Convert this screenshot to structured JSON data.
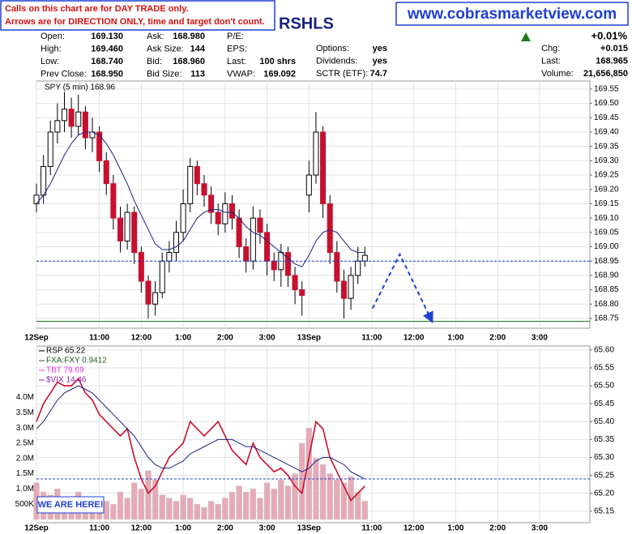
{
  "header": {
    "notice": [
      "Calls on this chart are for DAY TRADE only.",
      "Arrows are for DIRECTION ONLY, time and target don't count."
    ],
    "symbol": "RSHLS",
    "website": "www.cobrasmarketview.com"
  },
  "quote": {
    "change_pct": "+0.01%",
    "columns": [
      [
        {
          "label": "Open:",
          "value": "169.130"
        },
        {
          "label": "High:",
          "value": "169.460"
        },
        {
          "label": "Low:",
          "value": "168.740"
        },
        {
          "label": "Prev Close:",
          "value": "168.950"
        }
      ],
      [
        {
          "label": "Ask:",
          "value": "168.980"
        },
        {
          "label": "Ask Size:",
          "value": "144"
        },
        {
          "label": "Bid:",
          "value": "168.960"
        },
        {
          "label": "Bid Size:",
          "value": "113"
        }
      ],
      [
        {
          "label": "P/E:"
        },
        {
          "label": "EPS:"
        },
        {
          "label": "Last:",
          "value": "100 shrs"
        },
        {
          "label": "VWAP:",
          "value": "169.092"
        }
      ],
      [
        {
          "label": "Options:",
          "value": "yes"
        },
        {
          "label": "Dividends:",
          "value": "yes"
        },
        {
          "label": "SCTR (ETF):",
          "value": "74.7"
        }
      ],
      [
        {
          "label": "Chg:",
          "value": "+0.015"
        },
        {
          "label": "Last:",
          "value": "168.965"
        },
        {
          "label": "Volume:",
          "value": "21,656,850"
        }
      ]
    ]
  },
  "chart_data": [
    {
      "type": "candlestick",
      "legend": "SPY (5 min) 168.96",
      "x": [
        0,
        10,
        20,
        30,
        40,
        50,
        60,
        70,
        80,
        90,
        100,
        110,
        120,
        130,
        140,
        150,
        160,
        170,
        180,
        190,
        200,
        210,
        220,
        230,
        240,
        250,
        260,
        270,
        280,
        290,
        300,
        310,
        320,
        330,
        340,
        350,
        360,
        370,
        380,
        390,
        400,
        410,
        420,
        430,
        440,
        450,
        460,
        470
      ],
      "open": [
        169.15,
        169.18,
        169.28,
        169.4,
        169.44,
        169.48,
        169.42,
        169.47,
        169.38,
        169.4,
        169.3,
        169.22,
        169.1,
        169.02,
        169.12,
        168.98,
        168.88,
        168.8,
        168.84,
        168.95,
        168.98,
        169.05,
        169.15,
        169.28,
        169.22,
        169.18,
        169.12,
        169.08,
        169.15,
        169.1,
        169.0,
        168.95,
        169.1,
        169.05,
        168.95,
        168.92,
        168.98,
        168.9,
        168.85,
        169.18,
        169.25,
        169.4,
        169.15,
        168.98,
        168.88,
        168.82,
        168.9,
        168.95
      ],
      "high": [
        169.22,
        169.32,
        169.44,
        169.5,
        169.54,
        169.52,
        169.53,
        169.49,
        169.45,
        169.42,
        169.33,
        169.25,
        169.14,
        169.15,
        169.14,
        169.0,
        168.9,
        168.88,
        168.98,
        169.02,
        169.09,
        169.2,
        169.31,
        169.3,
        169.25,
        169.21,
        169.15,
        169.19,
        169.18,
        169.13,
        169.03,
        169.14,
        169.13,
        169.08,
        168.98,
        169.01,
        169.0,
        168.93,
        168.88,
        169.3,
        169.47,
        169.42,
        169.18,
        169.02,
        168.92,
        168.93,
        169.0,
        169.0
      ],
      "low": [
        169.12,
        169.15,
        169.25,
        169.36,
        169.4,
        169.38,
        169.39,
        169.34,
        169.33,
        169.26,
        169.18,
        169.06,
        168.98,
        168.99,
        168.94,
        168.84,
        168.75,
        168.76,
        168.82,
        168.91,
        168.95,
        169.02,
        169.12,
        169.18,
        169.14,
        169.08,
        169.04,
        169.05,
        169.06,
        168.96,
        168.91,
        168.92,
        169.01,
        168.9,
        168.88,
        168.86,
        168.86,
        168.8,
        168.76,
        169.12,
        169.22,
        169.1,
        168.94,
        168.84,
        168.75,
        168.78,
        168.87,
        168.93
      ],
      "close": [
        169.18,
        169.28,
        169.4,
        169.44,
        169.48,
        169.42,
        169.47,
        169.38,
        169.4,
        169.3,
        169.22,
        169.1,
        169.02,
        169.12,
        168.98,
        168.88,
        168.8,
        168.84,
        168.95,
        168.98,
        169.05,
        169.15,
        169.28,
        169.22,
        169.18,
        169.12,
        169.08,
        169.15,
        169.1,
        169.0,
        168.95,
        169.1,
        169.05,
        168.95,
        168.92,
        168.98,
        168.9,
        168.85,
        168.83,
        169.25,
        169.4,
        169.15,
        168.98,
        168.88,
        168.82,
        168.9,
        168.95,
        168.97
      ],
      "ma": [
        169.15,
        169.18,
        169.22,
        169.27,
        169.32,
        169.36,
        169.39,
        169.4,
        169.4,
        169.39,
        169.36,
        169.32,
        169.27,
        169.22,
        169.16,
        169.11,
        169.06,
        169.01,
        168.99,
        168.99,
        169.0,
        169.02,
        169.06,
        169.1,
        169.12,
        169.13,
        169.13,
        169.12,
        169.12,
        169.1,
        169.07,
        169.05,
        169.04,
        169.02,
        169.0,
        168.98,
        168.96,
        168.94,
        168.93,
        168.97,
        169.02,
        169.05,
        169.06,
        169.05,
        169.02,
        168.99,
        168.98,
        168.98
      ],
      "up_color": "#ffffff",
      "down_color": "#c8102e",
      "ma_color": "#1a237e",
      "price_line": {
        "value": 168.95,
        "color": "#1f3fd0"
      },
      "support_line": {
        "value": 168.74,
        "color": "#1e7a1e"
      },
      "arrow": {
        "x": [
          481,
          520,
          566
        ],
        "y": [
          168.785,
          168.974,
          168.74
        ],
        "color": "#1f3fd0"
      },
      "xlim": [
        0,
        792
      ],
      "xticks": [
        {
          "value": 0,
          "label": "12Sep"
        },
        {
          "value": 90,
          "label": "11:00"
        },
        {
          "value": 150,
          "label": "12:00"
        },
        {
          "value": 210,
          "label": "1:00"
        },
        {
          "value": 270,
          "label": "2:00"
        },
        {
          "value": 330,
          "label": "3:00"
        },
        {
          "value": 390,
          "label": "13Sep"
        },
        {
          "value": 480,
          "label": "11:00"
        },
        {
          "value": 540,
          "label": "12:00"
        },
        {
          "value": 600,
          "label": "1:00"
        },
        {
          "value": 660,
          "label": "2:00"
        },
        {
          "value": 720,
          "label": "3:00"
        }
      ],
      "ylim": [
        168.716,
        169.578
      ],
      "yticks": [
        169.55,
        {
          "value": 169.5,
          "label": "169.50"
        },
        169.45,
        {
          "value": 169.4,
          "label": "169.40"
        },
        169.35,
        {
          "value": 169.3,
          "label": "169.30"
        },
        169.25,
        {
          "value": 169.2,
          "label": "169.20"
        },
        169.15,
        {
          "value": 169.1,
          "label": "169.10"
        },
        169.05,
        {
          "value": 169,
          "label": "169.00"
        },
        168.95,
        {
          "value": 168.9,
          "label": "168.90"
        },
        168.85,
        {
          "value": 168.8,
          "label": "168.80"
        },
        168.75
      ],
      "grid": true
    },
    {
      "type": "line",
      "legend_texts": [
        {
          "text": "RSP  65.22",
          "color": "#000000"
        },
        {
          "text": "FXA:FXY  0.9412",
          "color": "#1b5e20"
        },
        {
          "text": "TBT  79.69",
          "color": "#e040e0"
        },
        {
          "text": "$VIX  14.46",
          "color": "#8e24aa"
        }
      ],
      "annotation": "WE ARE HERE!",
      "x": [
        0,
        10,
        20,
        30,
        40,
        50,
        60,
        70,
        80,
        90,
        100,
        110,
        120,
        130,
        140,
        150,
        160,
        170,
        180,
        190,
        200,
        210,
        220,
        230,
        240,
        250,
        260,
        270,
        280,
        290,
        300,
        310,
        320,
        330,
        340,
        350,
        360,
        370,
        380,
        390,
        400,
        410,
        420,
        430,
        440,
        450,
        460,
        470
      ],
      "series": [
        {
          "name": "RSP",
          "color": "#c8102e",
          "values": [
            65.4,
            65.45,
            65.48,
            65.51,
            65.5,
            65.5,
            65.52,
            65.48,
            65.46,
            65.42,
            65.4,
            65.38,
            65.36,
            65.38,
            65.3,
            65.24,
            65.2,
            65.22,
            65.26,
            65.3,
            65.32,
            65.34,
            65.4,
            65.38,
            65.36,
            65.38,
            65.4,
            65.36,
            65.32,
            65.3,
            65.28,
            65.34,
            65.3,
            65.28,
            65.26,
            65.27,
            65.25,
            65.22,
            65.2,
            65.3,
            65.4,
            65.38,
            65.3,
            65.26,
            65.22,
            65.18,
            65.2,
            65.22
          ]
        },
        {
          "color": "#1a237e",
          "values": [
            65.38,
            65.4,
            65.43,
            65.46,
            65.48,
            65.49,
            65.5,
            65.49,
            65.48,
            65.46,
            65.44,
            65.42,
            65.4,
            65.38,
            65.36,
            65.33,
            65.3,
            65.28,
            65.27,
            65.27,
            65.28,
            65.29,
            65.31,
            65.32,
            65.33,
            65.34,
            65.35,
            65.35,
            65.35,
            65.34,
            65.33,
            65.33,
            65.32,
            65.31,
            65.3,
            65.29,
            65.28,
            65.27,
            65.26,
            65.27,
            65.29,
            65.3,
            65.3,
            65.29,
            65.28,
            65.26,
            65.25,
            65.24
          ]
        },
        {
          "axis": "y2",
          "color": "#e6aab6",
          "values": [
            1200000,
            900000,
            800000,
            1000000,
            700000,
            600000,
            900000,
            700000,
            600000,
            700000,
            600000,
            500000,
            900000,
            700000,
            1200000,
            1000000,
            1600000,
            1300000,
            800000,
            700000,
            600000,
            800000,
            700000,
            500000,
            400000,
            600000,
            500000,
            700000,
            900000,
            1100000,
            900000,
            1000000,
            700000,
            1200000,
            1000000,
            1300000,
            1100000,
            1500000,
            2500000,
            3000000,
            2000000,
            1800000,
            1500000,
            1300000,
            1200000,
            1400000,
            900000,
            600000
          ]
        }
      ],
      "price_line": {
        "value": 65.24,
        "color": "#1f3fd0"
      },
      "xlim": [
        0,
        792
      ],
      "xticks": [
        {
          "value": 0,
          "label": "12Sep"
        },
        {
          "value": 90,
          "label": "11:00"
        },
        {
          "value": 150,
          "label": "12:00"
        },
        {
          "value": 210,
          "label": "1:00"
        },
        {
          "value": 270,
          "label": "2:00"
        },
        {
          "value": 330,
          "label": "3:00"
        },
        {
          "value": 390,
          "label": "13Sep"
        },
        {
          "value": 480,
          "label": "11:00"
        },
        {
          "value": 540,
          "label": "12:00"
        },
        {
          "value": 600,
          "label": "1:00"
        },
        {
          "value": 660,
          "label": "2:00"
        },
        {
          "value": 720,
          "label": "3:00"
        }
      ],
      "ylim": [
        65.118,
        65.611
      ],
      "yticks": [
        {
          "value": 65.6,
          "label": "65.60"
        },
        65.55,
        {
          "value": 65.5,
          "label": "65.50"
        },
        65.45,
        {
          "value": 65.4,
          "label": "65.40"
        },
        65.35,
        {
          "value": 65.3,
          "label": "65.30"
        },
        65.25,
        {
          "value": 65.2,
          "label": "65.20"
        },
        65.15
      ],
      "y2lim": [
        0,
        5690000
      ],
      "y2ticks": [
        {
          "value": 4000000,
          "label": "4.0M"
        },
        {
          "value": 3500000,
          "label": "3.5M"
        },
        {
          "value": 3000000,
          "label": "3.0M"
        },
        {
          "value": 2500000,
          "label": "2.5M"
        },
        {
          "value": 2000000,
          "label": "2.0M"
        },
        {
          "value": 1500000,
          "label": "1.5M"
        },
        {
          "value": 1000000,
          "label": "1.0M"
        },
        {
          "value": 500000,
          "label": "500K"
        }
      ],
      "grid": true
    }
  ]
}
